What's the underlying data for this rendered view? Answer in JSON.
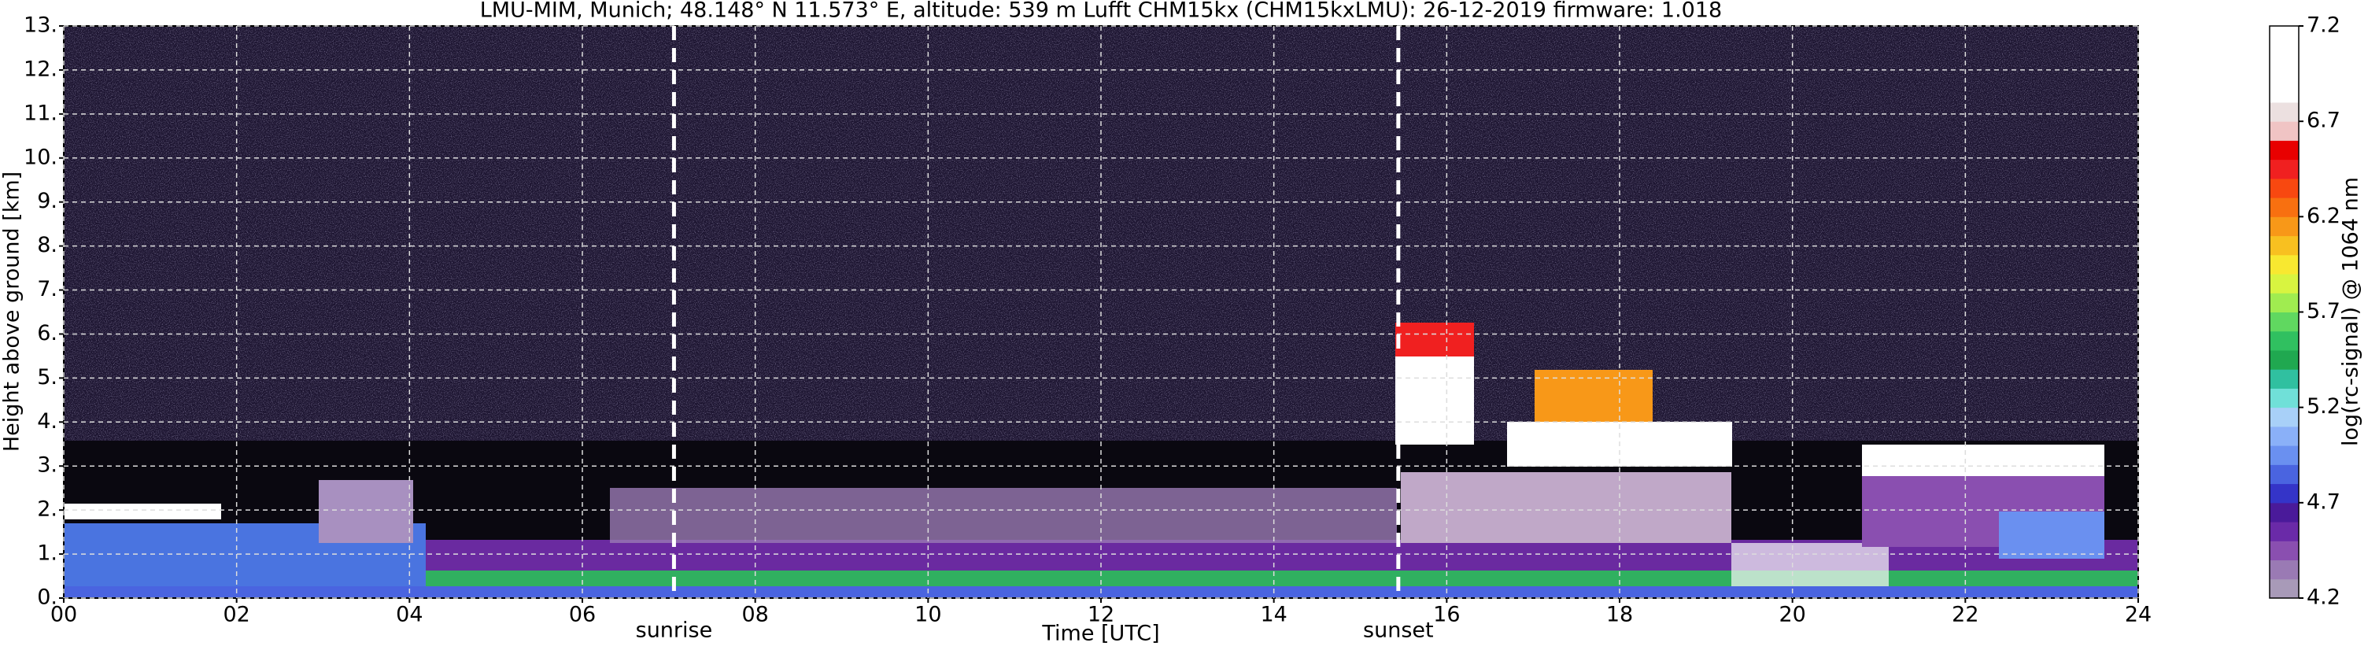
{
  "chart_data": {
    "type": "heatmap",
    "title": "LMU-MIM, Munich; 48.148° N 11.573° E, altitude: 539 m    Lufft CHM15kx (CHM15kxLMU): 26-12-2019    firmware: 1.018",
    "x_label": "Time [UTC]",
    "y_label": "Height above ground [km]",
    "xlim": [
      0,
      24
    ],
    "xticks": [
      {
        "value": 0,
        "label": "00"
      },
      {
        "value": 2,
        "label": "02"
      },
      {
        "value": 4,
        "label": "04"
      },
      {
        "value": 6,
        "label": "06"
      },
      {
        "value": 8,
        "label": "08"
      },
      10,
      12,
      14,
      16,
      18,
      20,
      22,
      24
    ],
    "ylim": [
      0,
      13
    ],
    "yticks": [
      {
        "value": 0,
        "label": "0."
      },
      {
        "value": 1,
        "label": "1."
      },
      {
        "value": 2,
        "label": "2."
      },
      {
        "value": 3,
        "label": "3."
      },
      {
        "value": 4,
        "label": "4."
      },
      {
        "value": 5,
        "label": "5."
      },
      {
        "value": 6,
        "label": "6."
      },
      {
        "value": 7,
        "label": "7."
      },
      {
        "value": 8,
        "label": "8."
      },
      {
        "value": 9,
        "label": "9."
      },
      {
        "value": 10,
        "label": "10."
      },
      {
        "value": 11,
        "label": "11."
      },
      {
        "value": 12,
        "label": "12."
      },
      {
        "value": 13,
        "label": "13."
      }
    ],
    "grid": true,
    "annotations": [
      {
        "x": 7.06,
        "text": "sunrise"
      },
      {
        "x": 15.44,
        "text": "sunset"
      }
    ],
    "colorbar": {
      "label": "log(rc-signal) @ 1064 nm",
      "lim": [
        4.2,
        7.2
      ],
      "ticks": [
        4.2,
        4.7,
        5.2,
        5.7,
        6.2,
        6.7,
        7.2
      ],
      "colors": [
        "#a89ab8",
        "#9a7ab4",
        "#8a4fb0",
        "#6a2aa8",
        "#4a1a9a",
        "#3434c8",
        "#4a64e0",
        "#6a90f0",
        "#8ab0f8",
        "#a8d0f8",
        "#70e0d8",
        "#30c0a0",
        "#20a850",
        "#30c060",
        "#60d860",
        "#a0ec50",
        "#d8f440",
        "#f8e830",
        "#f8c020",
        "#f89818",
        "#f87010",
        "#f84810",
        "#f02020",
        "#e80000",
        "#f0c4c4",
        "#ece0e0",
        "#ffffff",
        "#ffffff",
        "#ffffff",
        "#ffffff"
      ]
    }
  }
}
